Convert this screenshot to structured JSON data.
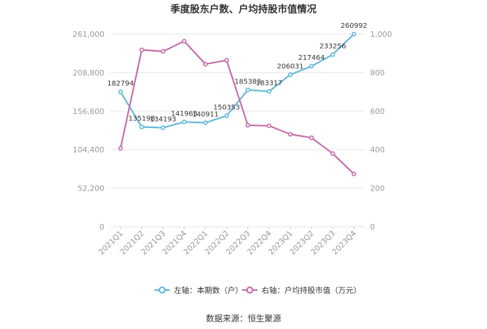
{
  "chart_data": {
    "type": "line",
    "title": "季度股东户数、户均持股市值情况",
    "categories": [
      "2021Q1",
      "2021Q2",
      "2021Q3",
      "2021Q4",
      "2022Q1",
      "2022Q2",
      "2022Q3",
      "2022Q4",
      "2023Q1",
      "2023Q2",
      "2023Q3",
      "2023Q4"
    ],
    "left_axis": {
      "ticks": [
        "0",
        "52,200",
        "104,400",
        "156,600",
        "208,800",
        "261,000"
      ],
      "ylim": [
        0,
        261000
      ]
    },
    "right_axis": {
      "ticks": [
        "0",
        "200",
        "400",
        "600",
        "800",
        "1,000"
      ],
      "ylim": [
        0,
        1000
      ]
    },
    "series": [
      {
        "name": "左轴：本期数（户）",
        "axis": "left",
        "color": "#4ab9e8",
        "values": [
          182794,
          135198,
          134193,
          141963,
          140911,
          150353,
          185383,
          183317,
          206031,
          217464,
          233256,
          260992
        ],
        "labels": [
          "182794",
          "135198",
          "134193",
          "141963",
          "140911",
          "150353",
          "185383",
          "183317",
          "206031",
          "217464",
          "233256",
          "260992"
        ]
      },
      {
        "name": "右轴：户均持股市值（万元）",
        "axis": "right",
        "color": "#d35ba8",
        "values": [
          407,
          918,
          910,
          963,
          844,
          864,
          527,
          524,
          480,
          462,
          380,
          274
        ]
      }
    ],
    "grid": true,
    "legend_position": "bottom"
  },
  "footer": {
    "source": "数据来源：恒生聚源"
  }
}
